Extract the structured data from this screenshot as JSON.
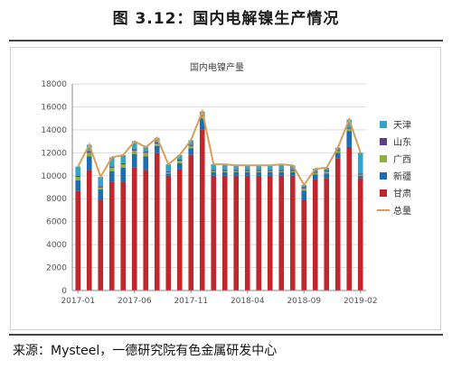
{
  "figure": {
    "title": "图 3.12：国内电解镍生产情况",
    "source": "来源：Mysteel，一德研究院有色金属研发中心"
  },
  "colors": {
    "甘肃": "#c0272d",
    "新疆": "#1f6cb0",
    "广西": "#8bb046",
    "山东": "#5b3c88",
    "天津": "#3aa3c2",
    "总量": "#d4a05c"
  },
  "chart_data": {
    "type": "bar",
    "title": "国内电镍产量",
    "stacked": true,
    "ylim": [
      0,
      18000
    ],
    "yticks": [
      0,
      2000,
      4000,
      6000,
      8000,
      10000,
      12000,
      14000,
      16000,
      18000
    ],
    "grid": true,
    "legend_position": "right",
    "xtick_labels": [
      {
        "index": 0,
        "label": "2017-01"
      },
      {
        "index": 5,
        "label": "2017-06"
      },
      {
        "index": 10,
        "label": "2017-11"
      },
      {
        "index": 15,
        "label": "2018-04"
      },
      {
        "index": 20,
        "label": "2018-09"
      },
      {
        "index": 25,
        "label": "2019-02"
      }
    ],
    "categories": [
      "2017-01",
      "2017-02",
      "2017-03",
      "2017-04",
      "2017-05",
      "2017-06",
      "2017-07",
      "2017-08",
      "2017-09",
      "2017-10",
      "2017-11",
      "2017-12",
      "2018-01",
      "2018-02",
      "2018-03",
      "2018-04",
      "2018-05",
      "2018-06",
      "2018-07",
      "2018-08",
      "2018-09",
      "2018-10",
      "2018-11",
      "2018-12",
      "2019-01",
      "2019-02"
    ],
    "series": [
      {
        "name": "甘肃",
        "values": [
          8700,
          10500,
          7900,
          9500,
          9500,
          10700,
          10500,
          12000,
          10000,
          10600,
          11800,
          14000,
          10000,
          10000,
          10000,
          10000,
          10000,
          10000,
          10000,
          10000,
          7900,
          9700,
          9800,
          11500,
          12500,
          9800
        ]
      },
      {
        "name": "新疆",
        "values": [
          900,
          1200,
          900,
          900,
          1200,
          1200,
          1200,
          600,
          200,
          500,
          600,
          1000,
          300,
          300,
          300,
          300,
          300,
          300,
          300,
          300,
          800,
          400,
          400,
          500,
          1400,
          200
        ]
      },
      {
        "name": "广西",
        "values": [
          300,
          300,
          200,
          300,
          300,
          300,
          300,
          200,
          100,
          200,
          200,
          200,
          100,
          100,
          100,
          100,
          100,
          100,
          100,
          100,
          200,
          150,
          150,
          150,
          200,
          100
        ]
      },
      {
        "name": "山东",
        "values": [
          100,
          100,
          100,
          100,
          100,
          100,
          100,
          100,
          100,
          100,
          100,
          100,
          100,
          100,
          100,
          100,
          100,
          100,
          100,
          100,
          100,
          100,
          100,
          100,
          100,
          100
        ]
      },
      {
        "name": "天津",
        "values": [
          800,
          600,
          800,
          800,
          700,
          700,
          400,
          400,
          600,
          400,
          400,
          300,
          500,
          500,
          400,
          400,
          400,
          400,
          500,
          400,
          200,
          250,
          250,
          200,
          700,
          1800
        ]
      }
    ],
    "total": {
      "name": "总量",
      "values": [
        10800,
        12700,
        9900,
        11600,
        11800,
        13000,
        12500,
        13300,
        11000,
        11800,
        13100,
        15600,
        11000,
        11000,
        10900,
        10900,
        10900,
        10900,
        11000,
        10900,
        9200,
        10600,
        10700,
        12450,
        14900,
        12000
      ]
    }
  }
}
